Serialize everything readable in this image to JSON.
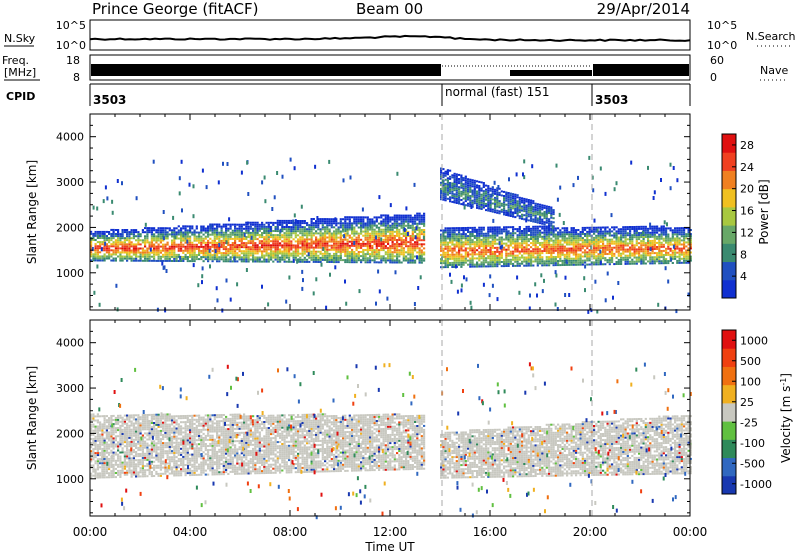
{
  "header": {
    "title": "Prince George (fitACF)",
    "beam": "Beam 00",
    "date": "29/Apr/2014"
  },
  "sky_panel": {
    "left_label": "N.Sky",
    "right_label": "N.Search",
    "left_ticks": [
      "10^5",
      "10^0"
    ],
    "right_ticks": [
      "10^5",
      "10^0"
    ]
  },
  "freq_panel": {
    "left_label": "Freq.",
    "left_unit": "[MHz]",
    "right_label": "Nave",
    "left_ticks": [
      "18",
      "8"
    ],
    "right_ticks": [
      "60",
      "0"
    ]
  },
  "cpid": {
    "label": "CPID",
    "segments": [
      {
        "label": "3503",
        "start_hour": 0,
        "end_hour": 14
      },
      {
        "label": "normal (fast) 151",
        "start_hour": 14,
        "end_hour": 20
      },
      {
        "label": "3503",
        "start_hour": 20,
        "end_hour": 24
      }
    ]
  },
  "x_axis": {
    "label": "Time UT",
    "ticks": [
      "00:00",
      "04:00",
      "08:00",
      "12:00",
      "16:00",
      "20:00",
      "00:00"
    ]
  },
  "colors": {
    "power_scale": [
      "#1030d0",
      "#2050c0",
      "#3a8a70",
      "#68a868",
      "#a8c840",
      "#f0c020",
      "#f08020",
      "#f04020",
      "#e01010"
    ],
    "velocity_scale": [
      "#1838b0",
      "#3068c0",
      "#2f8a5a",
      "#60c040",
      "#c8c8c0",
      "#f0b020",
      "#f07010",
      "#f04010",
      "#e01010"
    ],
    "ground_scatter": "#c8c8c0"
  },
  "chart_data": [
    {
      "type": "heatmap",
      "title": "Power",
      "ylabel": "Slant Range [km]",
      "xlabel": "Time UT",
      "y_ticks": [
        "1000",
        "2000",
        "3000",
        "4000"
      ],
      "ylim": [
        180,
        4500
      ],
      "xlim": [
        0,
        24
      ],
      "colorbar": {
        "label": "Power [dB]",
        "ticks": [
          "4",
          "8",
          "12",
          "16",
          "20",
          "24",
          "28"
        ],
        "range": [
          0,
          30
        ]
      },
      "bands": [
        {
          "t0": 0.0,
          "t1": 13.4,
          "r0": [
            1250,
            1900
          ],
          "r1": [
            1200,
            2300
          ],
          "peak_power": 28
        },
        {
          "t0": 14.0,
          "t1": 24.0,
          "r0": [
            1100,
            2000
          ],
          "r1": [
            1200,
            2000
          ],
          "peak_power": 26
        },
        {
          "t0": 14.0,
          "t1": 18.5,
          "r0": [
            2600,
            3300
          ],
          "r1": [
            2000,
            2400
          ],
          "peak_power": 8
        }
      ]
    },
    {
      "type": "heatmap",
      "title": "Velocity",
      "ylabel": "Slant Range [km]",
      "xlabel": "Time UT",
      "y_ticks": [
        "1000",
        "2000",
        "3000",
        "4000"
      ],
      "ylim": [
        180,
        4500
      ],
      "xlim": [
        0,
        24
      ],
      "colorbar": {
        "label": "Velocity [m s^-1]",
        "ticks": [
          "1000",
          "500",
          "100",
          "25",
          "-25",
          "-100",
          "-500",
          "-1000"
        ]
      },
      "bands": [
        {
          "t0": 0.0,
          "t1": 13.4,
          "r0": [
            1000,
            2400
          ],
          "r1": [
            1200,
            2400
          ],
          "dominant": "ground scatter"
        },
        {
          "t0": 14.0,
          "t1": 24.0,
          "r0": [
            1000,
            2000
          ],
          "r1": [
            1100,
            2400
          ],
          "dominant": "ground scatter"
        }
      ]
    }
  ]
}
